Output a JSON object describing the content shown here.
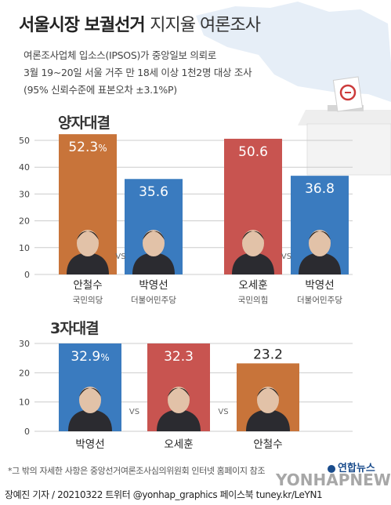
{
  "header": {
    "title_bold": "서울시장 보궐선거",
    "title_light": "지지율 여론조사",
    "subtitle_lines": [
      "여론조사업체 입소스(IPSOS)가 중앙일보 의뢰로",
      "3월 19~20일 서울 거주 만 18세 이상 1천2명 대상 조사",
      "(95% 신뢰수준에 표본오차 ±3.1%P)"
    ]
  },
  "colors": {
    "orange": "#c8743a",
    "blue": "#3a7bbf",
    "red": "#c85450",
    "grid": "#cccccc",
    "sky": "#e9f1f9"
  },
  "chart_data": [
    {
      "type": "bar",
      "title": "양자대결",
      "ylim": [
        0,
        50
      ],
      "yticks": [
        "0",
        "10",
        "20",
        "30",
        "40",
        "50"
      ],
      "vs": "VS",
      "groups": [
        {
          "categories": [
            "안철수",
            "박영선"
          ],
          "parties": [
            "국민의당",
            "더불어민주당"
          ],
          "values": [
            52.3,
            35.6
          ],
          "labels": [
            "52.3%",
            "35.6"
          ],
          "colors": [
            "orange",
            "blue"
          ]
        },
        {
          "categories": [
            "오세훈",
            "박영선"
          ],
          "parties": [
            "국민의힘",
            "더불어민주당"
          ],
          "values": [
            50.6,
            36.8
          ],
          "labels": [
            "50.6",
            "36.8"
          ],
          "colors": [
            "red",
            "blue"
          ]
        }
      ]
    },
    {
      "type": "bar",
      "title": "3자대결",
      "ylim": [
        0,
        30
      ],
      "yticks": [
        "0",
        "10",
        "20",
        "30"
      ],
      "vs": "VS",
      "categories": [
        "박영선",
        "오세훈",
        "안철수"
      ],
      "values": [
        32.9,
        32.3,
        23.2
      ],
      "labels": [
        "32.9%",
        "32.3",
        "23.2"
      ],
      "colors": [
        "blue",
        "red",
        "orange"
      ]
    }
  ],
  "footer": {
    "note": "*그 밖의 자세한 사항은 중앙선거여론조사심의위원회 인터넷 홈페이지 참조",
    "credit": "장예진 기자 / 20210322 트위터 @yonhap_graphics  페이스북 tuney.kr/LeYN1",
    "logo": "연합뉴스",
    "watermark": "YONHAPNEWS"
  }
}
